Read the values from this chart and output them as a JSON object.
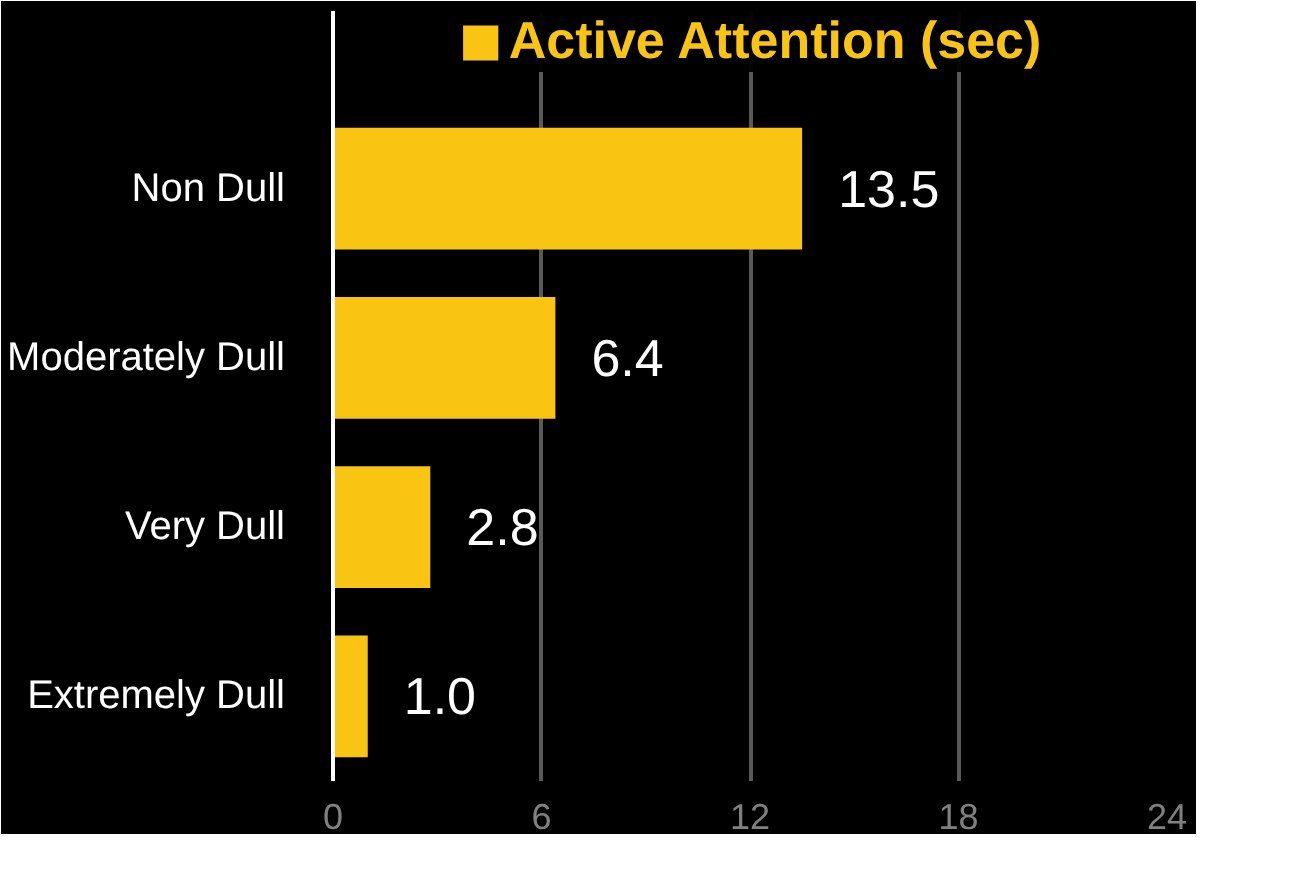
{
  "chart_data": {
    "type": "bar",
    "orientation": "horizontal",
    "categories": [
      "Non Dull",
      "Moderately Dull",
      "Very Dull",
      "Extremely Dull"
    ],
    "series": [
      {
        "name": "Active Attention (sec)",
        "color": "#f9c512",
        "values": [
          13.5,
          6.4,
          2.8,
          1.0
        ],
        "value_labels": [
          "13.5",
          "6.4",
          "2.8",
          "1.0"
        ]
      }
    ],
    "xlim": [
      0,
      24
    ],
    "xticks": [
      0,
      6,
      12,
      18,
      24
    ],
    "grid": "x",
    "legend": "top"
  }
}
